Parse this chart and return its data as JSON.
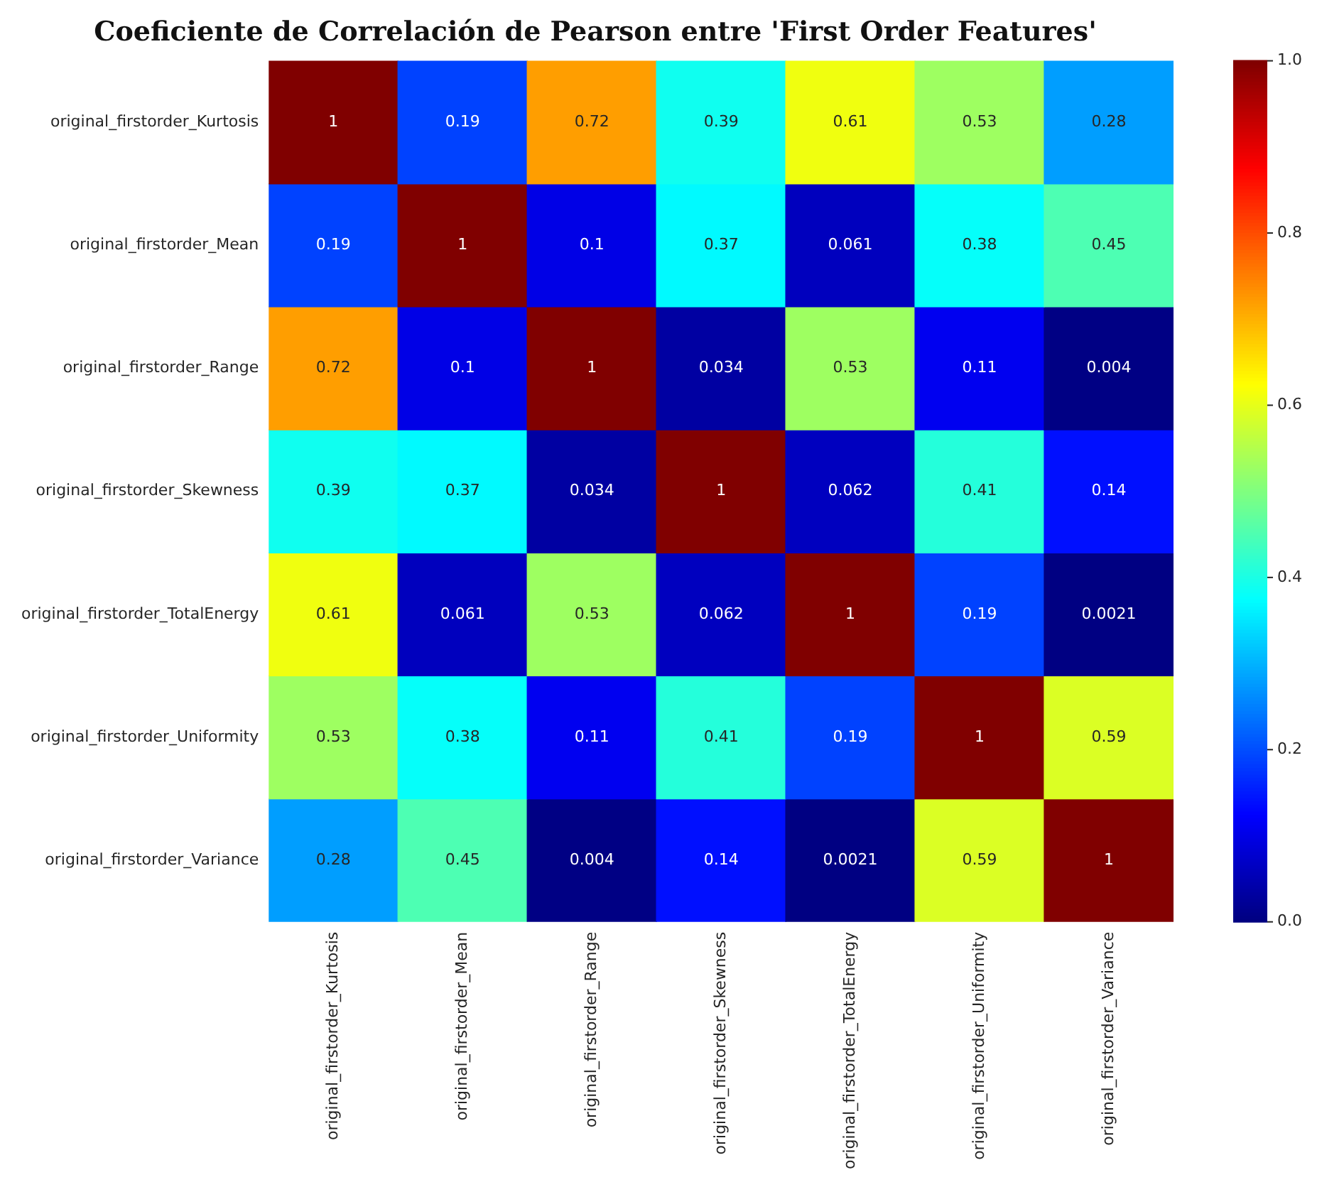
{
  "chart_data": {
    "type": "heatmap",
    "title": "Coeficiente de Correlación de Pearson entre 'First Order Features'",
    "categories": [
      "original_firstorder_Kurtosis",
      "original_firstorder_Mean",
      "original_firstorder_Range",
      "original_firstorder_Skewness",
      "original_firstorder_TotalEnergy",
      "original_firstorder_Uniformity",
      "original_firstorder_Variance"
    ],
    "y_categories": [
      "original_firstorder_Kurtosis",
      "original_firstorder_Mean",
      "original_firstorder_Range",
      "original_firstorder_Skewness",
      "original_firstorder_TotalEnergy",
      "original_firstorder_Uniformity",
      "original_firstorder_Variance"
    ],
    "cells": [
      [
        1,
        0.19,
        0.72,
        0.39,
        0.61,
        0.53,
        0.28
      ],
      [
        0.19,
        1,
        0.1,
        0.37,
        0.061,
        0.38,
        0.45
      ],
      [
        0.72,
        0.1,
        1,
        0.034,
        0.53,
        0.11,
        0.004
      ],
      [
        0.39,
        0.37,
        0.034,
        1,
        0.062,
        0.41,
        0.14
      ],
      [
        0.61,
        0.061,
        0.53,
        0.062,
        1,
        0.19,
        0.0021
      ],
      [
        0.53,
        0.38,
        0.11,
        0.41,
        0.19,
        1,
        0.59
      ],
      [
        0.28,
        0.45,
        0.004,
        0.14,
        0.0021,
        0.59,
        1
      ]
    ],
    "clim": [
      0,
      1
    ],
    "cticks": [
      {
        "value": 0,
        "label": "0.0"
      },
      0.2,
      0.4,
      0.6,
      0.8,
      {
        "value": 1,
        "label": "1.0"
      }
    ],
    "data_labels": true
  }
}
